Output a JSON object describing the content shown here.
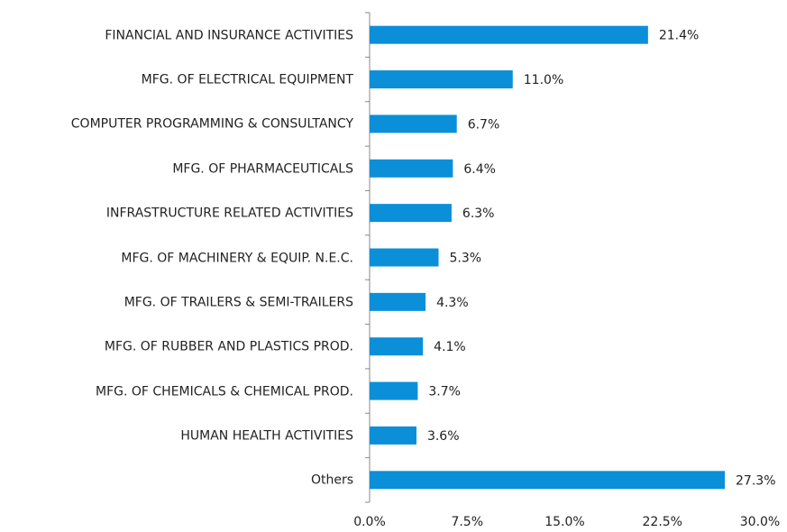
{
  "chart_data": {
    "type": "barh",
    "categories": [
      "FINANCIAL AND INSURANCE ACTIVITIES",
      "MFG. OF ELECTRICAL EQUIPMENT",
      "COMPUTER PROGRAMMING & CONSULTANCY",
      "MFG. OF PHARMACEUTICALS",
      "INFRASTRUCTURE RELATED ACTIVITIES",
      "MFG. OF MACHINERY & EQUIP. N.E.C.",
      "MFG. OF TRAILERS & SEMI-TRAILERS",
      "MFG. OF RUBBER AND PLASTICS PROD.",
      "MFG. OF CHEMICALS & CHEMICAL PROD.",
      "HUMAN HEALTH ACTIVITIES",
      "Others"
    ],
    "values": [
      21.4,
      11.0,
      6.7,
      6.4,
      6.3,
      5.3,
      4.3,
      4.1,
      3.7,
      3.6,
      27.3
    ],
    "value_labels": [
      "21.4%",
      "11.0%",
      "6.7%",
      "6.4%",
      "6.3%",
      "5.3%",
      "4.3%",
      "4.1%",
      "3.7%",
      "3.6%",
      "27.3%"
    ],
    "color": "#0b8fd9",
    "xlim": [
      0,
      30
    ],
    "xticks": [
      {
        "value": 0,
        "label": "0.0%"
      },
      {
        "value": 7.5,
        "label": "7.5%"
      },
      {
        "value": 15,
        "label": "15.0%"
      },
      {
        "value": 22.5,
        "label": "22.5%"
      },
      {
        "value": 30,
        "label": "30.0%"
      }
    ],
    "grid": false
  }
}
